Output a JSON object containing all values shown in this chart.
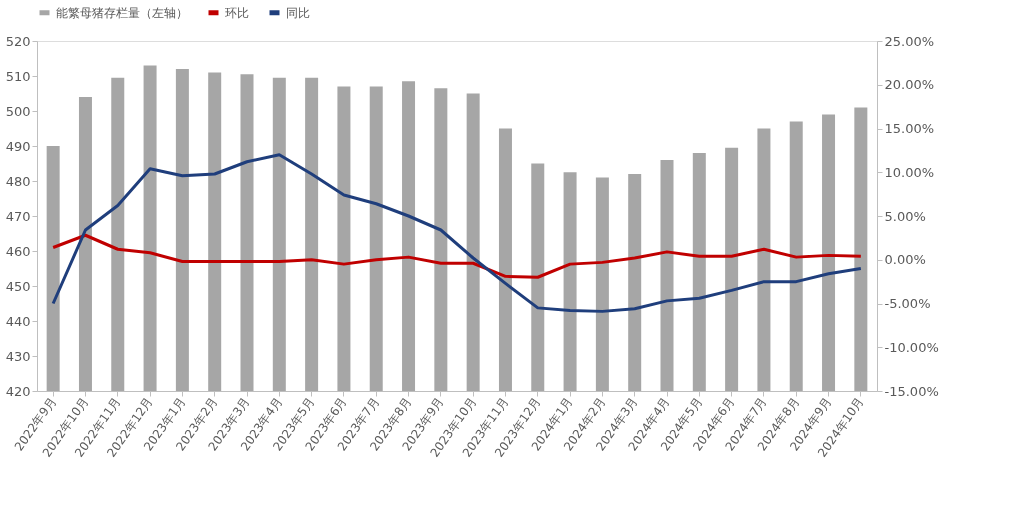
{
  "chart_data": {
    "type": "bar",
    "categories": [
      "2022年9月",
      "2022年10月",
      "2022年11月",
      "2022年12月",
      "2023年1月",
      "2023年2月",
      "2023年3月",
      "2023年4月",
      "2023年5月",
      "2023年6月",
      "2023年7月",
      "2023年8月",
      "2023年9月",
      "2023年10月",
      "2023年11月",
      "2023年12月",
      "2024年1月",
      "2024年2月",
      "2024年3月",
      "2024年4月",
      "2024年5月",
      "2024年6月",
      "2024年7月",
      "2024年8月",
      "2024年9月",
      "2024年10月"
    ],
    "series": [
      {
        "name": "能繁母猪存栏量（左轴）",
        "color": "#a6a6a6",
        "values": [
          490,
          504,
          509.5,
          513,
          512,
          511,
          510.5,
          509.5,
          509.5,
          507,
          507,
          508.5,
          506.5,
          505,
          495,
          485,
          482.5,
          481,
          482,
          486,
          488,
          489.5,
          495,
          497,
          499,
          501
        ]
      },
      {
        "name": "环比",
        "type": "line",
        "axis": "y2",
        "color": "#c00000",
        "values": [
          1.4,
          2.8,
          1.2,
          0.8,
          -0.2,
          -0.2,
          -0.2,
          -0.2,
          0,
          -0.5,
          0,
          0.3,
          -0.4,
          -0.4,
          -1.9,
          -2.0,
          -0.5,
          -0.3,
          0.2,
          0.9,
          0.4,
          0.4,
          1.2,
          0.3,
          0.5,
          0.4
        ]
      },
      {
        "name": "同比",
        "type": "line",
        "axis": "y2",
        "color": "#1f3e7c",
        "values": [
          -5,
          3.4,
          6.2,
          10.4,
          9.6,
          9.8,
          11.2,
          12,
          9.8,
          7.4,
          6.4,
          5,
          3.4,
          0.2,
          -2.7,
          -5.5,
          -5.8,
          -5.9,
          -5.6,
          -4.7,
          -4.4,
          -3.5,
          -2.5,
          -2.5,
          -1.6,
          -1.0
        ]
      }
    ],
    "ylim": [
      420,
      520
    ],
    "yticks": [
      420,
      430,
      440,
      450,
      460,
      470,
      480,
      490,
      500,
      510,
      520
    ],
    "y2lim": [
      -15,
      25
    ],
    "y2ticks": [
      {
        "value": -15,
        "label": "-15.00%"
      },
      {
        "value": -10,
        "label": "-10.00%"
      },
      {
        "value": -5,
        "label": "-5.00%"
      },
      {
        "value": 0,
        "label": "0.00%"
      },
      {
        "value": 5,
        "label": "5.00%"
      },
      {
        "value": 10,
        "label": "10.00%"
      },
      {
        "value": 15,
        "label": "15.00%"
      },
      {
        "value": 20,
        "label": "20.00%"
      },
      {
        "value": 25,
        "label": "25.00%"
      }
    ],
    "grid": false,
    "legend": "top",
    "line_style": "solid",
    "marker": "none"
  }
}
